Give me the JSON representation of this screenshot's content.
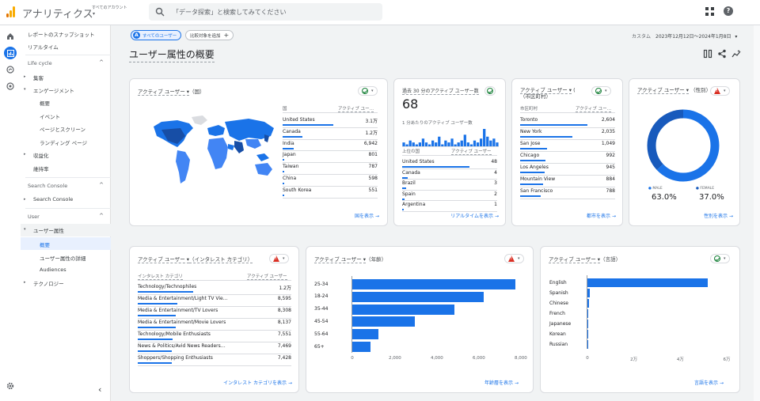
{
  "app": {
    "title": "アナリティクス",
    "account_label": "すべてのアカウント",
    "search_placeholder": "「データ探索」と検索してみてください"
  },
  "sidebar": {
    "top": [
      "レポートのスナップショット",
      "リアルタイム"
    ],
    "lifecycle": {
      "label": "Life cycle",
      "items": [
        "集客",
        "エンゲージメント",
        "概要",
        "イベント",
        "ページとスクリーン",
        "ランディング ページ",
        "収益化",
        "維持率"
      ]
    },
    "search_console": {
      "label": "Search Console",
      "items": [
        "Search Console"
      ]
    },
    "user": {
      "label": "User",
      "items": [
        "ユーザー属性",
        "概要",
        "ユーザー属性の詳細",
        "Audiences",
        "テクノロジー"
      ]
    },
    "collapse": "‹"
  },
  "header": {
    "chip_all": "すべてのユーザー",
    "chip_add": "比較対象を追加",
    "date_label": "カスタム",
    "date_range": "2023年12月12日～2024年1月8日",
    "page_title": "ユーザー属性の概要"
  },
  "cards": {
    "country": {
      "title": "アクティブ ユーザー",
      "dim": "（国）",
      "col_dim": "国",
      "col_val": "アクティブ ユー…",
      "rows": [
        {
          "name": "United States",
          "value": "3.1万",
          "frac": 1.0
        },
        {
          "name": "Canada",
          "value": "1.2万",
          "frac": 0.39
        },
        {
          "name": "India",
          "value": "6,942",
          "frac": 0.22
        },
        {
          "name": "Japan",
          "value": "801",
          "frac": 0.03
        },
        {
          "name": "Taiwan",
          "value": "787",
          "frac": 0.03
        },
        {
          "name": "China",
          "value": "598",
          "frac": 0.02
        },
        {
          "name": "South Korea",
          "value": "551",
          "frac": 0.02
        }
      ],
      "link": "国を表示"
    },
    "realtime": {
      "title": "過去 30 分のアクティブ ユーザー数",
      "big": "68",
      "sub": "1 分あたりのアクティブ ユーザー数",
      "col_dim": "上位の国",
      "col_val": "アクティブ ユーザー",
      "spark": [
        2,
        1,
        3,
        2,
        1,
        2,
        4,
        2,
        1,
        3,
        2,
        5,
        1,
        3,
        2,
        4,
        1,
        2,
        3,
        6,
        2,
        1,
        3,
        2,
        4,
        9,
        5,
        3,
        4,
        2
      ],
      "rows": [
        {
          "name": "United States",
          "value": "48",
          "frac": 1.0
        },
        {
          "name": "Canada",
          "value": "4",
          "frac": 0.08
        },
        {
          "name": "Brazil",
          "value": "3",
          "frac": 0.06
        },
        {
          "name": "Spain",
          "value": "2",
          "frac": 0.04
        },
        {
          "name": "Argentina",
          "value": "1",
          "frac": 0.02
        }
      ],
      "link": "リアルタイムを表示"
    },
    "city": {
      "title": "アクティブ ユーザー",
      "dim": "（市区町村）",
      "col_dim": "市区町村",
      "col_val": "アクティブ ユー…",
      "rows": [
        {
          "name": "Toronto",
          "value": "2,604",
          "frac": 1.0
        },
        {
          "name": "New York",
          "value": "2,035",
          "frac": 0.78
        },
        {
          "name": "San Jose",
          "value": "1,049",
          "frac": 0.4
        },
        {
          "name": "Chicago",
          "value": "992",
          "frac": 0.38
        },
        {
          "name": "Los Angeles",
          "value": "945",
          "frac": 0.36
        },
        {
          "name": "Mountain View",
          "value": "884",
          "frac": 0.34
        },
        {
          "name": "San Francisco",
          "value": "788",
          "frac": 0.3
        }
      ],
      "link": "都市を表示"
    },
    "gender": {
      "title": "アクティブ ユーザー",
      "dim": "（性別）",
      "male_label": "MALE",
      "male_value": "63.0%",
      "male_frac": 0.63,
      "female_label": "FEMALE",
      "female_value": "37.0%",
      "male_color": "#1a73e8",
      "female_color": "#185abc",
      "link": "性別を表示"
    },
    "interest": {
      "title": "アクティブ ユーザー",
      "dim": "（インタレスト カテゴリ）",
      "col_dim": "インタレスト カテゴリ",
      "col_val": "アクティブ ユーザー",
      "rows": [
        {
          "name": "Technology/Technophiles",
          "value": "1.2万",
          "frac": 1.0
        },
        {
          "name": "Media & Entertainment/Light TV Vie…",
          "value": "8,595",
          "frac": 0.72
        },
        {
          "name": "Media & Entertainment/TV Lovers",
          "value": "8,308",
          "frac": 0.69
        },
        {
          "name": "Media & Entertainment/Movie Lovers",
          "value": "8,137",
          "frac": 0.68
        },
        {
          "name": "Technology/Mobile Enthusiasts",
          "value": "7,551",
          "frac": 0.63
        },
        {
          "name": "News & Politics/Avid News Readers…",
          "value": "7,469",
          "frac": 0.62
        },
        {
          "name": "Shoppers/Shopping Enthusiasts",
          "value": "7,428",
          "frac": 0.62
        }
      ],
      "link": "インタレスト カテゴリを表示"
    },
    "age": {
      "title": "アクティブ ユーザー",
      "dim": "（年齢）",
      "link": "年齢層を表示"
    },
    "language": {
      "title": "アクティブ ユーザー",
      "dim": "（言語）",
      "link": "言語を表示"
    }
  },
  "chart_data": [
    {
      "type": "bar",
      "orientation": "horizontal",
      "categories": [
        "25-34",
        "18-24",
        "35-44",
        "45-54",
        "55-64",
        "65+"
      ],
      "values": [
        7800,
        6300,
        4900,
        3000,
        1300,
        900
      ],
      "xticks": [
        "0",
        "2,000",
        "4,000",
        "6,000",
        "8,000"
      ],
      "xlim": [
        0,
        8000
      ]
    },
    {
      "type": "bar",
      "orientation": "horizontal",
      "categories": [
        "English",
        "Spanish",
        "Chinese",
        "French",
        "Japanese",
        "Korean",
        "Russian"
      ],
      "values": [
        52000,
        1300,
        1000,
        500,
        500,
        400,
        300
      ],
      "xticks": [
        "0",
        "2万",
        "4万",
        "6万"
      ],
      "xlim": [
        0,
        60000
      ]
    }
  ]
}
